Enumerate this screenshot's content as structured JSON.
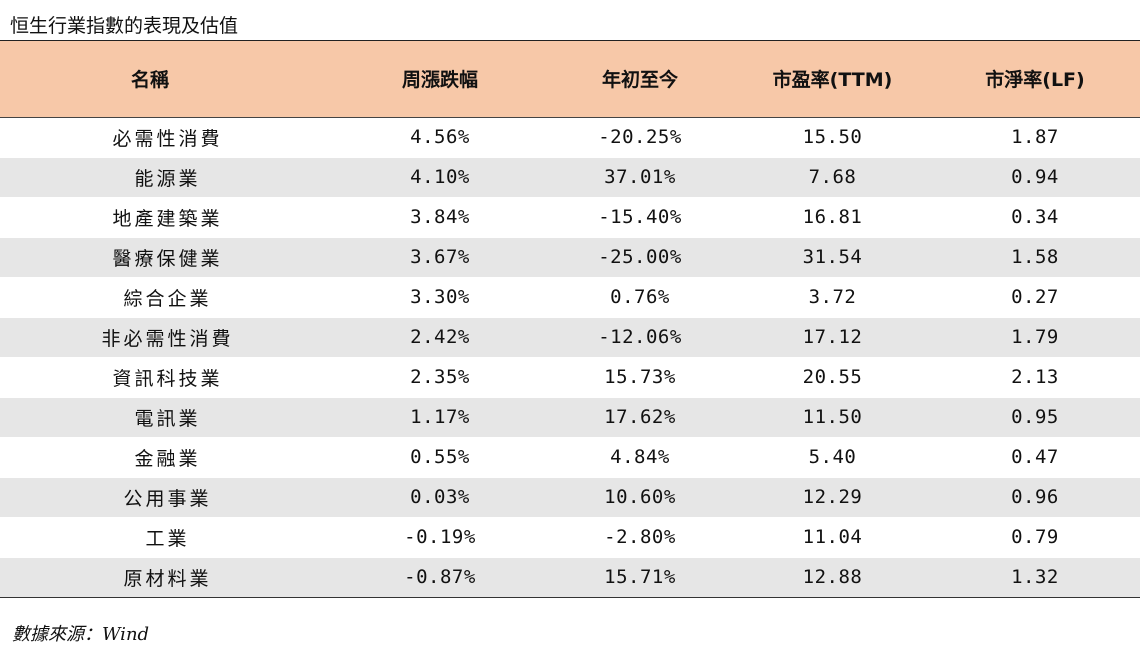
{
  "title": "恒生行業指數的表現及估值",
  "table": {
    "headers": [
      "名稱",
      "周漲跌幅",
      "年初至今",
      "市盈率(TTM)",
      "市淨率(LF)"
    ],
    "rows": [
      [
        "必需性消費",
        "4.56%",
        "-20.25%",
        "15.50",
        "1.87"
      ],
      [
        "能源業",
        "4.10%",
        "37.01%",
        "7.68",
        "0.94"
      ],
      [
        "地產建築業",
        "3.84%",
        "-15.40%",
        "16.81",
        "0.34"
      ],
      [
        "醫療保健業",
        "3.67%",
        "-25.00%",
        "31.54",
        "1.58"
      ],
      [
        "綜合企業",
        "3.30%",
        "0.76%",
        "3.72",
        "0.27"
      ],
      [
        "非必需性消費",
        "2.42%",
        "-12.06%",
        "17.12",
        "1.79"
      ],
      [
        "資訊科技業",
        "2.35%",
        "15.73%",
        "20.55",
        "2.13"
      ],
      [
        "電訊業",
        "1.17%",
        "17.62%",
        "11.50",
        "0.95"
      ],
      [
        "金融業",
        "0.55%",
        "4.84%",
        "5.40",
        "0.47"
      ],
      [
        "公用事業",
        "0.03%",
        "10.60%",
        "12.29",
        "0.96"
      ],
      [
        "工業",
        "-0.19%",
        "-2.80%",
        "11.04",
        "0.79"
      ],
      [
        "原材料業",
        "-0.87%",
        "15.71%",
        "12.88",
        "1.32"
      ]
    ]
  },
  "colors": {
    "header_bg": "#f7c8a8",
    "alt_row_bg": "#e6e6e6"
  },
  "source": "數據來源：Wind"
}
